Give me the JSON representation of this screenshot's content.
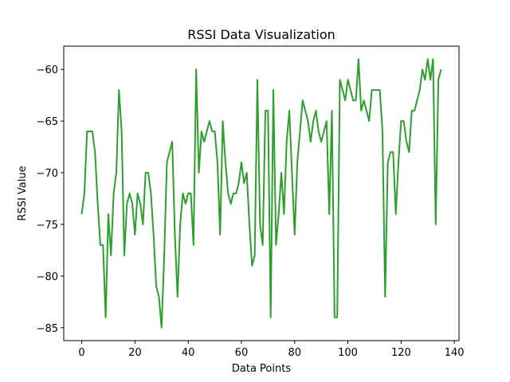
{
  "chart_data": {
    "type": "line",
    "title": "RSSI Data Visualization",
    "xlabel": "Data Points",
    "ylabel": "RSSI Value",
    "xlim": [
      -6.75,
      141.75
    ],
    "ylim": [
      -86.25,
      -57.75
    ],
    "x_ticks": [
      0,
      20,
      40,
      60,
      80,
      100,
      120,
      140
    ],
    "y_ticks": [
      -85,
      -80,
      -75,
      -70,
      -65,
      -60
    ],
    "grid": false,
    "legend": "none",
    "series": [
      {
        "color": "#2ca02c",
        "x": [
          0,
          1,
          2,
          3,
          4,
          5,
          6,
          7,
          8,
          9,
          10,
          11,
          12,
          13,
          14,
          15,
          16,
          17,
          18,
          19,
          20,
          21,
          22,
          23,
          24,
          25,
          26,
          27,
          28,
          29,
          30,
          31,
          32,
          33,
          34,
          35,
          36,
          37,
          38,
          39,
          40,
          41,
          42,
          43,
          44,
          45,
          46,
          47,
          48,
          49,
          50,
          51,
          52,
          53,
          54,
          55,
          56,
          57,
          58,
          59,
          60,
          61,
          62,
          63,
          64,
          65,
          66,
          67,
          68,
          69,
          70,
          71,
          72,
          73,
          74,
          75,
          76,
          77,
          78,
          79,
          80,
          81,
          82,
          83,
          84,
          85,
          86,
          87,
          88,
          89,
          90,
          91,
          92,
          93,
          94,
          95,
          96,
          97,
          98,
          99,
          100,
          101,
          102,
          103,
          104,
          105,
          106,
          107,
          108,
          109,
          110,
          111,
          112,
          113,
          114,
          115,
          116,
          117,
          118,
          119,
          120,
          121,
          122,
          123,
          124,
          125,
          126,
          127,
          128,
          129,
          130,
          131,
          132,
          133,
          134,
          135
        ],
        "values": [
          -74,
          -72,
          -66,
          -66,
          -66,
          -68,
          -73,
          -77,
          -77,
          -84,
          -74,
          -78,
          -72,
          -70,
          -62,
          -66,
          -78,
          -73,
          -72,
          -73,
          -76,
          -72,
          -73,
          -75,
          -70,
          -70,
          -72,
          -76,
          -81,
          -82,
          -85,
          -78,
          -69,
          -68,
          -67,
          -76,
          -82,
          -75,
          -72,
          -73,
          -72,
          -72,
          -77,
          -60,
          -70,
          -66,
          -67,
          -66,
          -65,
          -66,
          -66,
          -69,
          -76,
          -65,
          -69,
          -72,
          -73,
          -72,
          -72,
          -71,
          -69,
          -71,
          -70,
          -75,
          -79,
          -78,
          -61,
          -75,
          -77,
          -64,
          -64,
          -84,
          -62,
          -77,
          -74,
          -70,
          -74,
          -67,
          -64,
          -70,
          -76,
          -69,
          -66,
          -63,
          -64,
          -65,
          -67,
          -65,
          -64,
          -66,
          -67,
          -66,
          -65,
          -74,
          -64,
          -84,
          -84,
          -61,
          -62,
          -63,
          -61,
          -62,
          -63,
          -63,
          -59,
          -64,
          -63,
          -64,
          -65,
          -62,
          -62,
          -62,
          -62,
          -66,
          -82,
          -69,
          -68,
          -68,
          -74,
          -69,
          -65,
          -65,
          -67,
          -68,
          -64,
          -64,
          -63,
          -62,
          -60,
          -61,
          -59,
          -61,
          -59,
          -75,
          -61,
          -60
        ]
      }
    ]
  }
}
